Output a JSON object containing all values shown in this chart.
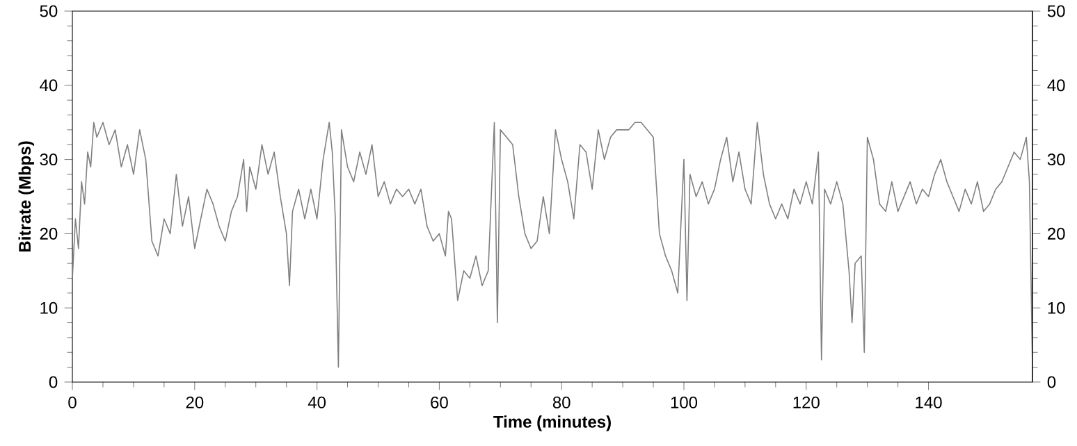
{
  "chart_data": {
    "type": "line",
    "xlabel": "Time (minutes)",
    "ylabel": "Bitrate (Mbps)",
    "xlim": [
      0,
      157
    ],
    "ylim": [
      0,
      50
    ],
    "y2lim": [
      0,
      50
    ],
    "xticks": [
      0,
      20,
      40,
      60,
      80,
      100,
      120,
      140
    ],
    "yticks": [
      0,
      10,
      20,
      30,
      40,
      50
    ],
    "y2ticks": [
      0,
      10,
      20,
      30,
      40,
      50
    ],
    "grid": false,
    "marker": "none",
    "line_style": "solid",
    "series": [
      {
        "color": "#808080",
        "x": [
          0,
          0.5,
          1,
          1.5,
          2,
          2.5,
          3,
          3.5,
          4,
          5,
          6,
          7,
          8,
          9,
          10,
          11,
          12,
          13,
          14,
          15,
          16,
          17,
          18,
          19,
          20,
          21,
          22,
          23,
          24,
          25,
          26,
          27,
          28,
          28.5,
          29,
          30,
          31,
          32,
          33,
          34,
          35,
          35.5,
          36,
          37,
          38,
          39,
          40,
          41,
          42,
          42.5,
          43,
          43.5,
          44,
          45,
          46,
          47,
          48,
          49,
          50,
          51,
          52,
          53,
          54,
          55,
          56,
          57,
          58,
          59,
          60,
          61,
          61.5,
          62,
          63,
          64,
          65,
          66,
          67,
          68,
          69,
          69.5,
          70,
          71,
          72,
          73,
          74,
          75,
          76,
          77,
          78,
          79,
          80,
          81,
          82,
          83,
          84,
          85,
          86,
          87,
          88,
          89,
          90,
          91,
          92,
          93,
          94,
          95,
          96,
          97,
          98,
          99,
          100,
          100.5,
          101,
          102,
          103,
          104,
          105,
          106,
          107,
          108,
          109,
          110,
          111,
          112,
          113,
          114,
          115,
          116,
          117,
          118,
          119,
          120,
          121,
          122,
          122.5,
          123,
          124,
          125,
          126,
          127,
          127.5,
          128,
          129,
          129.5,
          130,
          131,
          132,
          133,
          134,
          135,
          136,
          137,
          138,
          139,
          140,
          141,
          142,
          143,
          144,
          145,
          146,
          147,
          148,
          149,
          150,
          151,
          152,
          153,
          154,
          155,
          156,
          156.5,
          157
        ],
        "values": [
          14,
          22,
          18,
          27,
          24,
          31,
          29,
          35,
          33,
          35,
          32,
          34,
          29,
          32,
          28,
          34,
          30,
          19,
          17,
          22,
          20,
          28,
          21,
          25,
          18,
          22,
          26,
          24,
          21,
          19,
          23,
          25,
          30,
          23,
          29,
          26,
          32,
          28,
          31,
          25,
          20,
          13,
          23,
          26,
          22,
          26,
          22,
          30,
          35,
          31,
          22,
          2,
          34,
          29,
          27,
          31,
          28,
          32,
          25,
          27,
          24,
          26,
          25,
          26,
          24,
          26,
          21,
          19,
          20,
          17,
          23,
          22,
          11,
          15,
          14,
          17,
          13,
          15,
          35,
          8,
          34,
          33,
          32,
          25,
          20,
          18,
          19,
          25,
          20,
          34,
          30,
          27,
          22,
          32,
          31,
          26,
          34,
          30,
          33,
          34,
          34,
          34,
          35,
          35,
          34,
          33,
          20,
          17,
          15,
          12,
          30,
          11,
          28,
          25,
          27,
          24,
          26,
          30,
          33,
          27,
          31,
          26,
          24,
          35,
          28,
          24,
          22,
          24,
          22,
          26,
          24,
          27,
          24,
          31,
          3,
          26,
          24,
          27,
          24,
          15,
          8,
          16,
          17,
          4,
          33,
          30,
          24,
          23,
          27,
          23,
          25,
          27,
          24,
          26,
          25,
          28,
          30,
          27,
          25,
          23,
          26,
          24,
          27,
          23,
          24,
          26,
          27,
          29,
          31,
          30,
          33,
          27,
          2
        ]
      }
    ]
  }
}
